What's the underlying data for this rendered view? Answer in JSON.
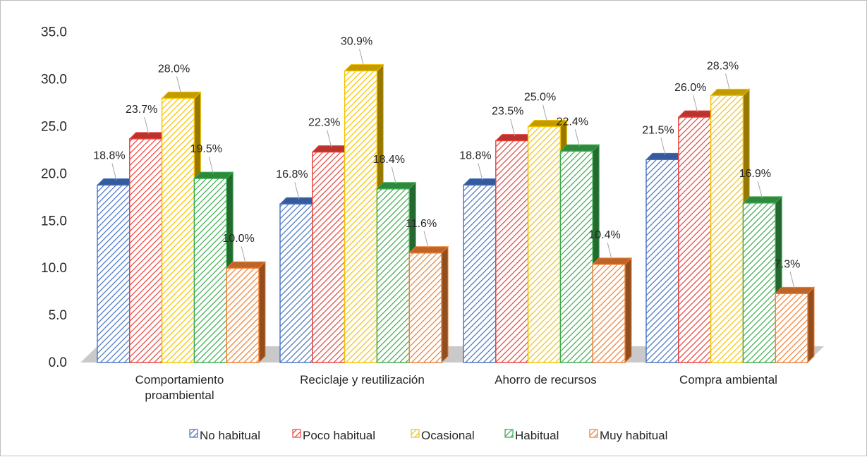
{
  "chart_data": {
    "type": "bar",
    "categories": [
      "Comportamiento proambiental",
      "Reciclaje y reutilización",
      "Ahorro de recursos",
      "Compra ambiental"
    ],
    "category_lines": [
      [
        "Comportamiento",
        "proambiental"
      ],
      [
        "Reciclaje y reutilización"
      ],
      [
        "Ahorro de recursos"
      ],
      [
        "Compra ambiental"
      ]
    ],
    "series": [
      {
        "name": "No habitual",
        "values": [
          18.8,
          16.8,
          18.8,
          21.5
        ],
        "labels": [
          "18.8%",
          "16.8%",
          "18.8%",
          "21.5%"
        ],
        "color": "#4472c4"
      },
      {
        "name": "Poco habitual",
        "values": [
          23.7,
          22.3,
          23.5,
          26.0
        ],
        "labels": [
          "23.7%",
          "22.3%",
          "23.5%",
          "26.0%"
        ],
        "color": "#e8403a"
      },
      {
        "name": "Ocasional",
        "values": [
          28.0,
          30.9,
          25.0,
          28.3
        ],
        "labels": [
          "28.0%",
          "30.9%",
          "25.0%",
          "28.3%"
        ],
        "color": "#f2c200"
      },
      {
        "name": "Habitual",
        "values": [
          19.5,
          18.4,
          22.4,
          16.9
        ],
        "labels": [
          "19.5%",
          "18.4%",
          "22.4%",
          "16.9%"
        ],
        "color": "#3aaa4c"
      },
      {
        "name": "Muy habitual",
        "values": [
          10.0,
          11.6,
          10.4,
          7.3
        ],
        "labels": [
          "10.0%",
          "11.6%",
          "10.4%",
          "7.3%"
        ],
        "color": "#ed7d31"
      }
    ],
    "yticks": [
      "0.0",
      "5.0",
      "10.0",
      "15.0",
      "20.0",
      "25.0",
      "30.0",
      "35.0"
    ],
    "ylim": [
      0,
      35
    ],
    "legend_position": "bottom",
    "style": "3d-clustered-column",
    "gridlines": false,
    "floor_color": "#c9c9c9"
  }
}
